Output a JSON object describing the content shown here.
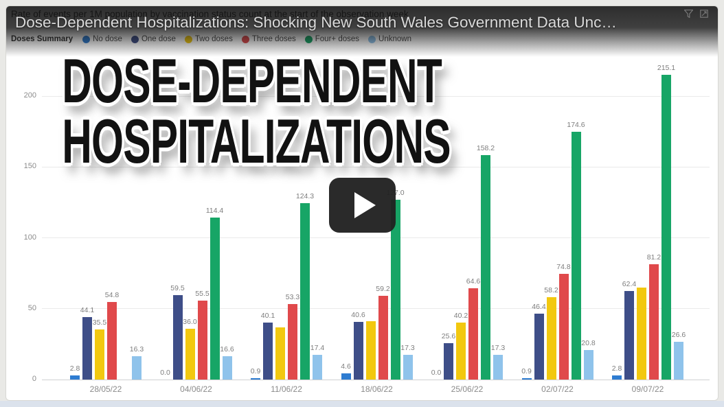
{
  "page": {
    "video_title": "Dose-Dependent Hospitalizations: Shocking New South Wales Government Data Unc…",
    "overlay_line1": "DOSE-DEPENDENT",
    "overlay_line2": "HOSPITALIZATIONS",
    "icons": {
      "play": "play-triangle",
      "filter": "filter-funnel",
      "expand": "focus-mode-square"
    },
    "colors": {
      "video_title": "#dadada",
      "heading_text": "#121212",
      "heading_outline": "#ffffff",
      "play_button_bg": "#262626",
      "page_background": "#e9e9e6",
      "bottom_strip": "#dbe2ec"
    }
  },
  "chart": {
    "title": "Rate of events per 1M population by vaccination status count at the start of the observation week",
    "legend_title": "Doses Summary"
  },
  "chart_data": {
    "type": "bar",
    "title": "Rate of events per 1M population by vaccination status count at the start of the observation week",
    "xlabel": "",
    "ylabel": "",
    "y_ticks": [
      0,
      50,
      100,
      150,
      200
    ],
    "ylim": [
      0,
      225
    ],
    "grid": true,
    "legend_position": "top",
    "categories": [
      "28/05/22",
      "04/06/22",
      "11/06/22",
      "18/06/22",
      "25/06/22",
      "02/07/22",
      "09/07/22"
    ],
    "series": [
      {
        "name": "No dose",
        "color": "#2E7CD1",
        "values": [
          2.8,
          0.0,
          0.9,
          4.6,
          0.0,
          0.9,
          2.8
        ],
        "labels": [
          "2.8",
          "0.0",
          "0.9",
          "4.6",
          "0.0",
          "0.9",
          "2.8"
        ]
      },
      {
        "name": "One dose",
        "color": "#3E4E88",
        "values": [
          44.1,
          59.5,
          40.1,
          40.6,
          25.6,
          46.4,
          62.4
        ],
        "labels": [
          "44.1",
          "59.5",
          "40.1",
          "40.6",
          "25.6",
          "46.4",
          "62.4"
        ]
      },
      {
        "name": "Two doses",
        "color": "#F2C80F",
        "values": [
          35.5,
          36.0,
          37.0,
          41.0,
          40.2,
          58.2,
          65.0
        ],
        "labels": [
          "35.5",
          "36.0",
          "",
          "",
          "40.2",
          "58.2",
          ""
        ]
      },
      {
        "name": "Three doses",
        "color": "#E0494B",
        "values": [
          54.8,
          55.5,
          53.3,
          59.2,
          64.6,
          74.8,
          81.2
        ],
        "labels": [
          "54.8",
          "55.5",
          "53.3",
          "59.2",
          "64.6",
          "74.8",
          "81.2"
        ]
      },
      {
        "name": "Four+ doses",
        "color": "#17A566",
        "values": [
          null,
          114.4,
          124.3,
          127.0,
          158.2,
          174.6,
          215.1
        ],
        "labels": [
          "",
          "114.4",
          "124.3",
          "127.0",
          "158.2",
          "174.6",
          "215.1"
        ]
      },
      {
        "name": "Unknown",
        "color": "#8FC3EB",
        "values": [
          16.3,
          16.6,
          17.4,
          17.3,
          17.3,
          20.8,
          26.6
        ],
        "labels": [
          "16.3",
          "16.6",
          "17.4",
          "17.3",
          "17.3",
          "20.8",
          "26.6"
        ]
      }
    ]
  }
}
